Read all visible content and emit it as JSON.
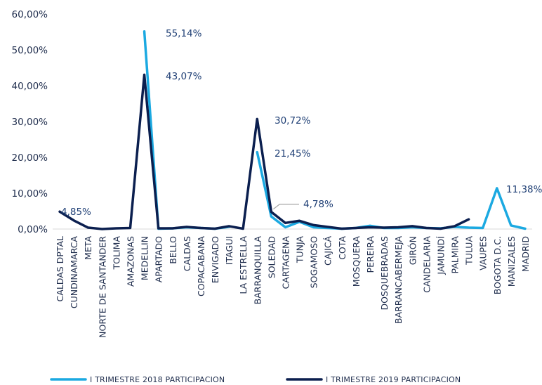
{
  "chart_data": {
    "type": "line",
    "title": "",
    "xlabel": "",
    "ylabel": "",
    "ylim": [
      0,
      60
    ],
    "y_ticks": [
      "0,00%",
      "10,00%",
      "20,00%",
      "30,00%",
      "40,00%",
      "50,00%",
      "60,00%"
    ],
    "grid": false,
    "legend_position": "bottom",
    "categories": [
      "CALDAS DPTAL",
      "CUNDINAMARCA",
      "META",
      "NORTE DE SANTANDER",
      "TOLIMA",
      "AMAZONAS",
      "MEDELLIN",
      "APARTADO",
      "BELLO",
      "CALDAS",
      "COPACABANA",
      "ENVIGADO",
      "ITAGUI",
      "LA ESTRELLA",
      "BARRANQUILLA",
      "SOLEDAD",
      "CARTAGENA",
      "TUNJA",
      "SOGAMOSO",
      "CAJICÁ",
      "COTA",
      "MOSQUERA",
      "PEREIRA",
      "DOSQUEBRADAS",
      "BARRANCABERMEJA",
      "GIRÓN",
      "CANDELARIA",
      "JAMUNDÍ",
      "PALMIRA",
      "TULUA",
      "VAUPES",
      "BOGOTA D.C.",
      "MANIZALES",
      "MADRID"
    ],
    "series": [
      {
        "name": "I TRIMESTRE 2018 PARTICIPACION",
        "color": "#1ba9e1",
        "values": [
          null,
          null,
          null,
          null,
          null,
          null,
          55.14,
          0.1,
          0.2,
          0.5,
          0.3,
          0.1,
          0.6,
          null,
          21.45,
          3.5,
          0.5,
          2.0,
          0.5,
          0.3,
          0.1,
          0.3,
          0.9,
          0.3,
          0.3,
          0.5,
          0.3,
          0.2,
          0.6,
          0.4,
          0.3,
          11.38,
          1.0,
          0.1
        ]
      },
      {
        "name": "I TRIMESTRE 2019 PARTICIPACION",
        "color": "#0b1f4f",
        "values": [
          4.85,
          2.4,
          0.4,
          0.0,
          0.2,
          0.3,
          43.07,
          0.2,
          0.2,
          0.6,
          0.3,
          0.1,
          0.8,
          0.1,
          30.72,
          4.78,
          1.7,
          2.3,
          1.1,
          0.6,
          0.1,
          0.3,
          0.5,
          0.4,
          0.5,
          0.8,
          0.3,
          0.1,
          0.8,
          2.7,
          null,
          null,
          null,
          null
        ]
      }
    ],
    "data_labels": [
      {
        "series": 1,
        "index": 0,
        "text": "4,85%"
      },
      {
        "series": 0,
        "index": 6,
        "text": "55,14%"
      },
      {
        "series": 1,
        "index": 6,
        "text": "43,07%"
      },
      {
        "series": 1,
        "index": 14,
        "text": "30,72%"
      },
      {
        "series": 0,
        "index": 14,
        "text": "21,45%"
      },
      {
        "series": 1,
        "index": 15,
        "text": "4,78%"
      },
      {
        "series": 0,
        "index": 31,
        "text": "11,38%"
      }
    ]
  }
}
